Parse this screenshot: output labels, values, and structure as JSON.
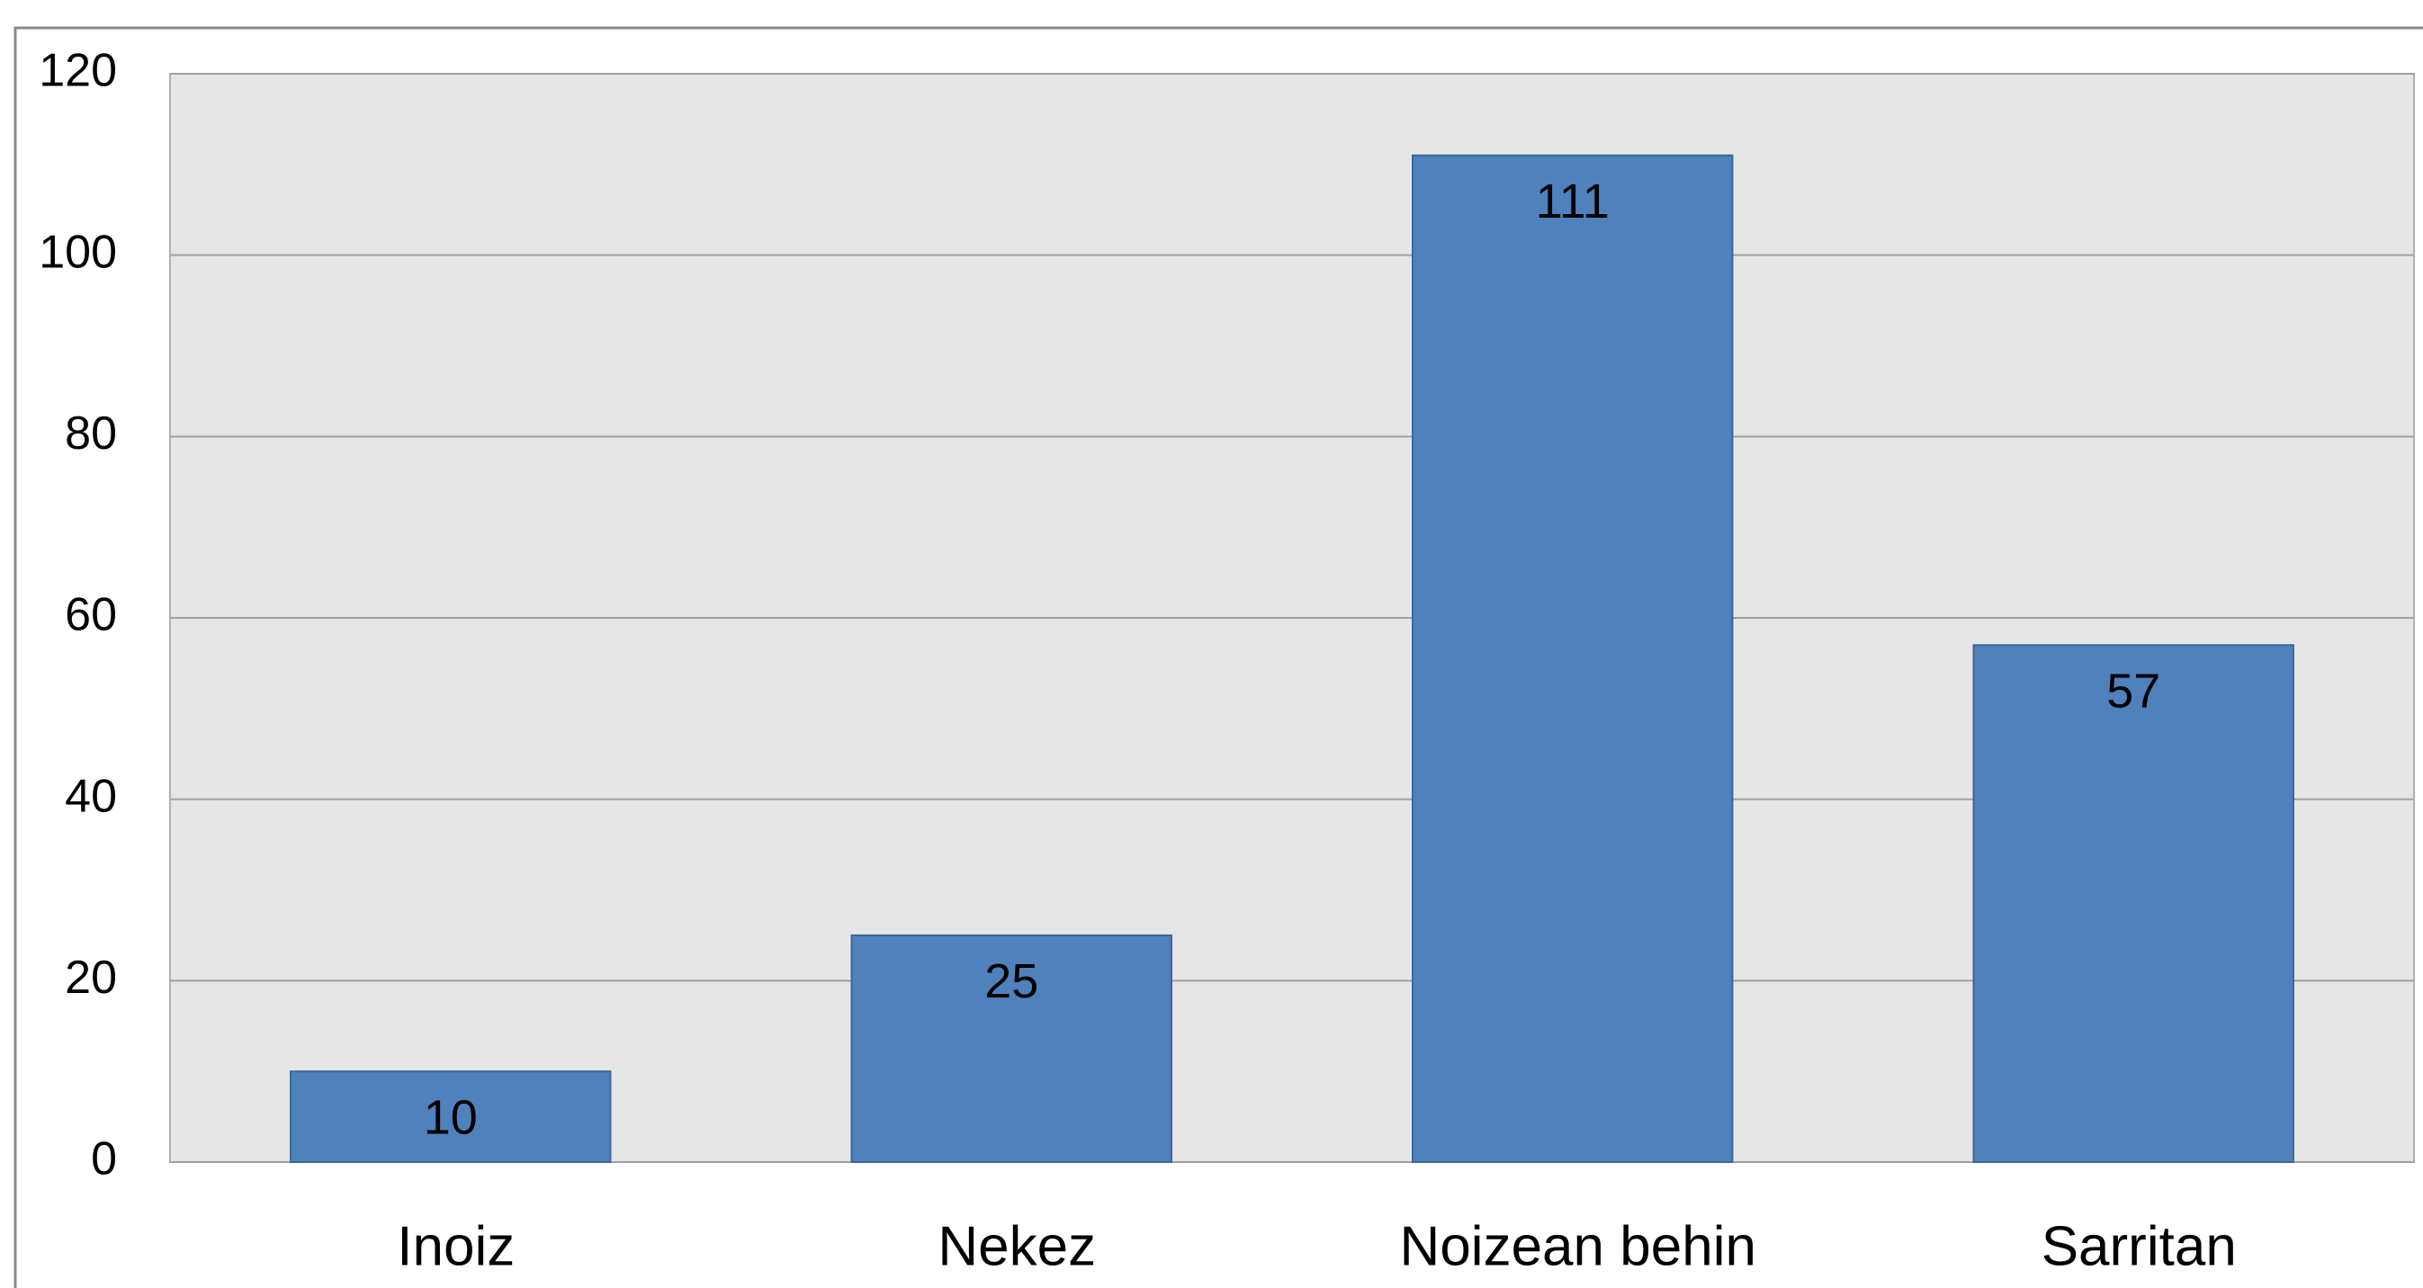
{
  "chart_data": {
    "type": "bar",
    "categories": [
      "Inoiz",
      "Nekez",
      "Noizean behin",
      "Sarritan"
    ],
    "values": [
      10,
      25,
      111,
      57
    ],
    "color": "#4f81bd",
    "ylim": [
      0,
      120
    ],
    "yticks": [
      0,
      20,
      40,
      60,
      80,
      100,
      120
    ],
    "grid": true
  }
}
